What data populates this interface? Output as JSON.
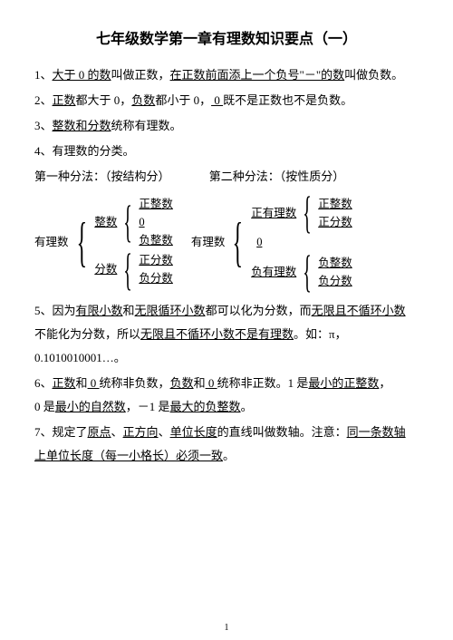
{
  "title": "七年级数学第一章有理数知识要点（一）",
  "pageNumber": "1",
  "items": {
    "p1a": "1、",
    "p1b": "大于 0 的数",
    "p1c": "叫做正数，",
    "p1d": "在正数前面添上一个负号\"－\"的数",
    "p1e": "叫做负数。",
    "p2a": "2、",
    "p2b": "正数",
    "p2c": "都大于 0，",
    "p2d": "负数",
    "p2e": "都小于 0，",
    "p2f": "  0 ",
    "p2g": "既不是正数也不是负数。",
    "p3a": "3、",
    "p3b": "整数和分数",
    "p3c": "统称有理数。",
    "p4a": "4、有理数的分类。",
    "m1": "第一种分法：（按结构分）",
    "m2": "第二种分法：（按性质分）",
    "d1root": "有理数",
    "d1L1": "整数",
    "d1L1a": "正整数",
    "d1L1b": "0",
    "d1L1c": "负整数",
    "d1L2": "分数",
    "d1L2a": "正分数",
    "d1L2b": "负分数",
    "d2root": "有理数",
    "d2L1": "正有理数",
    "d2L1a": "正整数",
    "d2L1b": "正分数",
    "d2mid": "0",
    "d2L2": "负有理数",
    "d2L2a": "负整数",
    "d2L2b": "负分数",
    "p5a": "5、因为",
    "p5b": "有限小数",
    "p5c": "和",
    "p5d": "无限循环小数",
    "p5e": "都可以化为分数，而",
    "p5f": "无限且不循环小数",
    "p5g": "不能化为分数，所以",
    "p5h": "无限且不循环小数不是有理数",
    "p5i": "。如：π，",
    "p5j": "0.1010010001…。",
    "p6a": "6、",
    "p6b": "正数",
    "p6c": "和",
    "p6d": " 0 ",
    "p6e": "统称非负数，",
    "p6f": "负数",
    "p6g": "和",
    "p6h": " 0 ",
    "p6i": "统称非正数。1 是",
    "p6j": "最小的正整数",
    "p6k": "，",
    "p6l": "0 是",
    "p6m": "最小的自然数",
    "p6n": "，－1 是",
    "p6o": "最大的负整数",
    "p6p": "。",
    "p7a": "7、规定了",
    "p7b": "原点",
    "p7c": "、",
    "p7d": "正方向",
    "p7e": "、",
    "p7f": "单位长度",
    "p7g": "的直线叫做数轴。注意：",
    "p7h": "同一条数轴",
    "p7i": "上单位长度（每一小格长）必须一致",
    "p7j": "。"
  },
  "style": {
    "bg": "#ffffff",
    "fg": "#000000",
    "titleSize": 16,
    "bodySize": 13
  }
}
